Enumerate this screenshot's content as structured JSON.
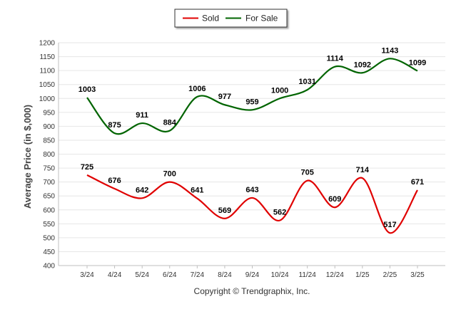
{
  "chart_data": {
    "type": "line",
    "categories": [
      "3/24",
      "4/24",
      "5/24",
      "6/24",
      "7/24",
      "8/24",
      "9/24",
      "10/24",
      "11/24",
      "12/24",
      "1/25",
      "2/25",
      "3/25"
    ],
    "series": [
      {
        "name": "Sold",
        "color": "#e00000",
        "values": [
          725,
          676,
          642,
          700,
          641,
          569,
          643,
          562,
          705,
          609,
          714,
          517,
          671
        ]
      },
      {
        "name": "For Sale",
        "color": "#006400",
        "values": [
          1003,
          875,
          911,
          884,
          1006,
          977,
          959,
          1000,
          1031,
          1114,
          1092,
          1143,
          1099
        ]
      }
    ],
    "ylabel": "Average Price (in $,000)",
    "xlabel": "",
    "ylim": [
      400,
      1200
    ],
    "yticks": [
      400,
      450,
      500,
      550,
      600,
      650,
      700,
      750,
      800,
      850,
      900,
      950,
      1000,
      1050,
      1100,
      1150,
      1200
    ],
    "grid": true,
    "legend": "top-center"
  },
  "footer": {
    "copyright": "Copyright © Trendgraphix, Inc."
  }
}
